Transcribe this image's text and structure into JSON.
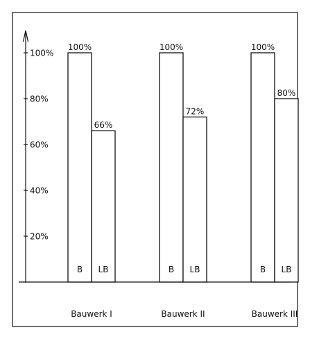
{
  "chart_data": {
    "type": "bar",
    "ylim": [
      0,
      100
    ],
    "y_ticks": [
      {
        "value": 20,
        "label": "20%"
      },
      {
        "value": 40,
        "label": "40%"
      },
      {
        "value": 60,
        "label": "60%"
      },
      {
        "value": 80,
        "label": "80%"
      },
      {
        "value": 100,
        "label": "100%"
      }
    ],
    "groups": [
      {
        "name": "Bauwerk I",
        "bars": [
          {
            "label": "B",
            "value": 100,
            "value_label": "100%"
          },
          {
            "label": "LB",
            "value": 66,
            "value_label": "66%"
          }
        ]
      },
      {
        "name": "Bauwerk II",
        "bars": [
          {
            "label": "B",
            "value": 100,
            "value_label": "100%"
          },
          {
            "label": "LB",
            "value": 72,
            "value_label": "72%"
          }
        ]
      },
      {
        "name": "Bauwerk III",
        "bars": [
          {
            "label": "B",
            "value": 100,
            "value_label": "100%"
          },
          {
            "label": "LB",
            "value": 80,
            "value_label": "80%"
          }
        ]
      }
    ]
  }
}
